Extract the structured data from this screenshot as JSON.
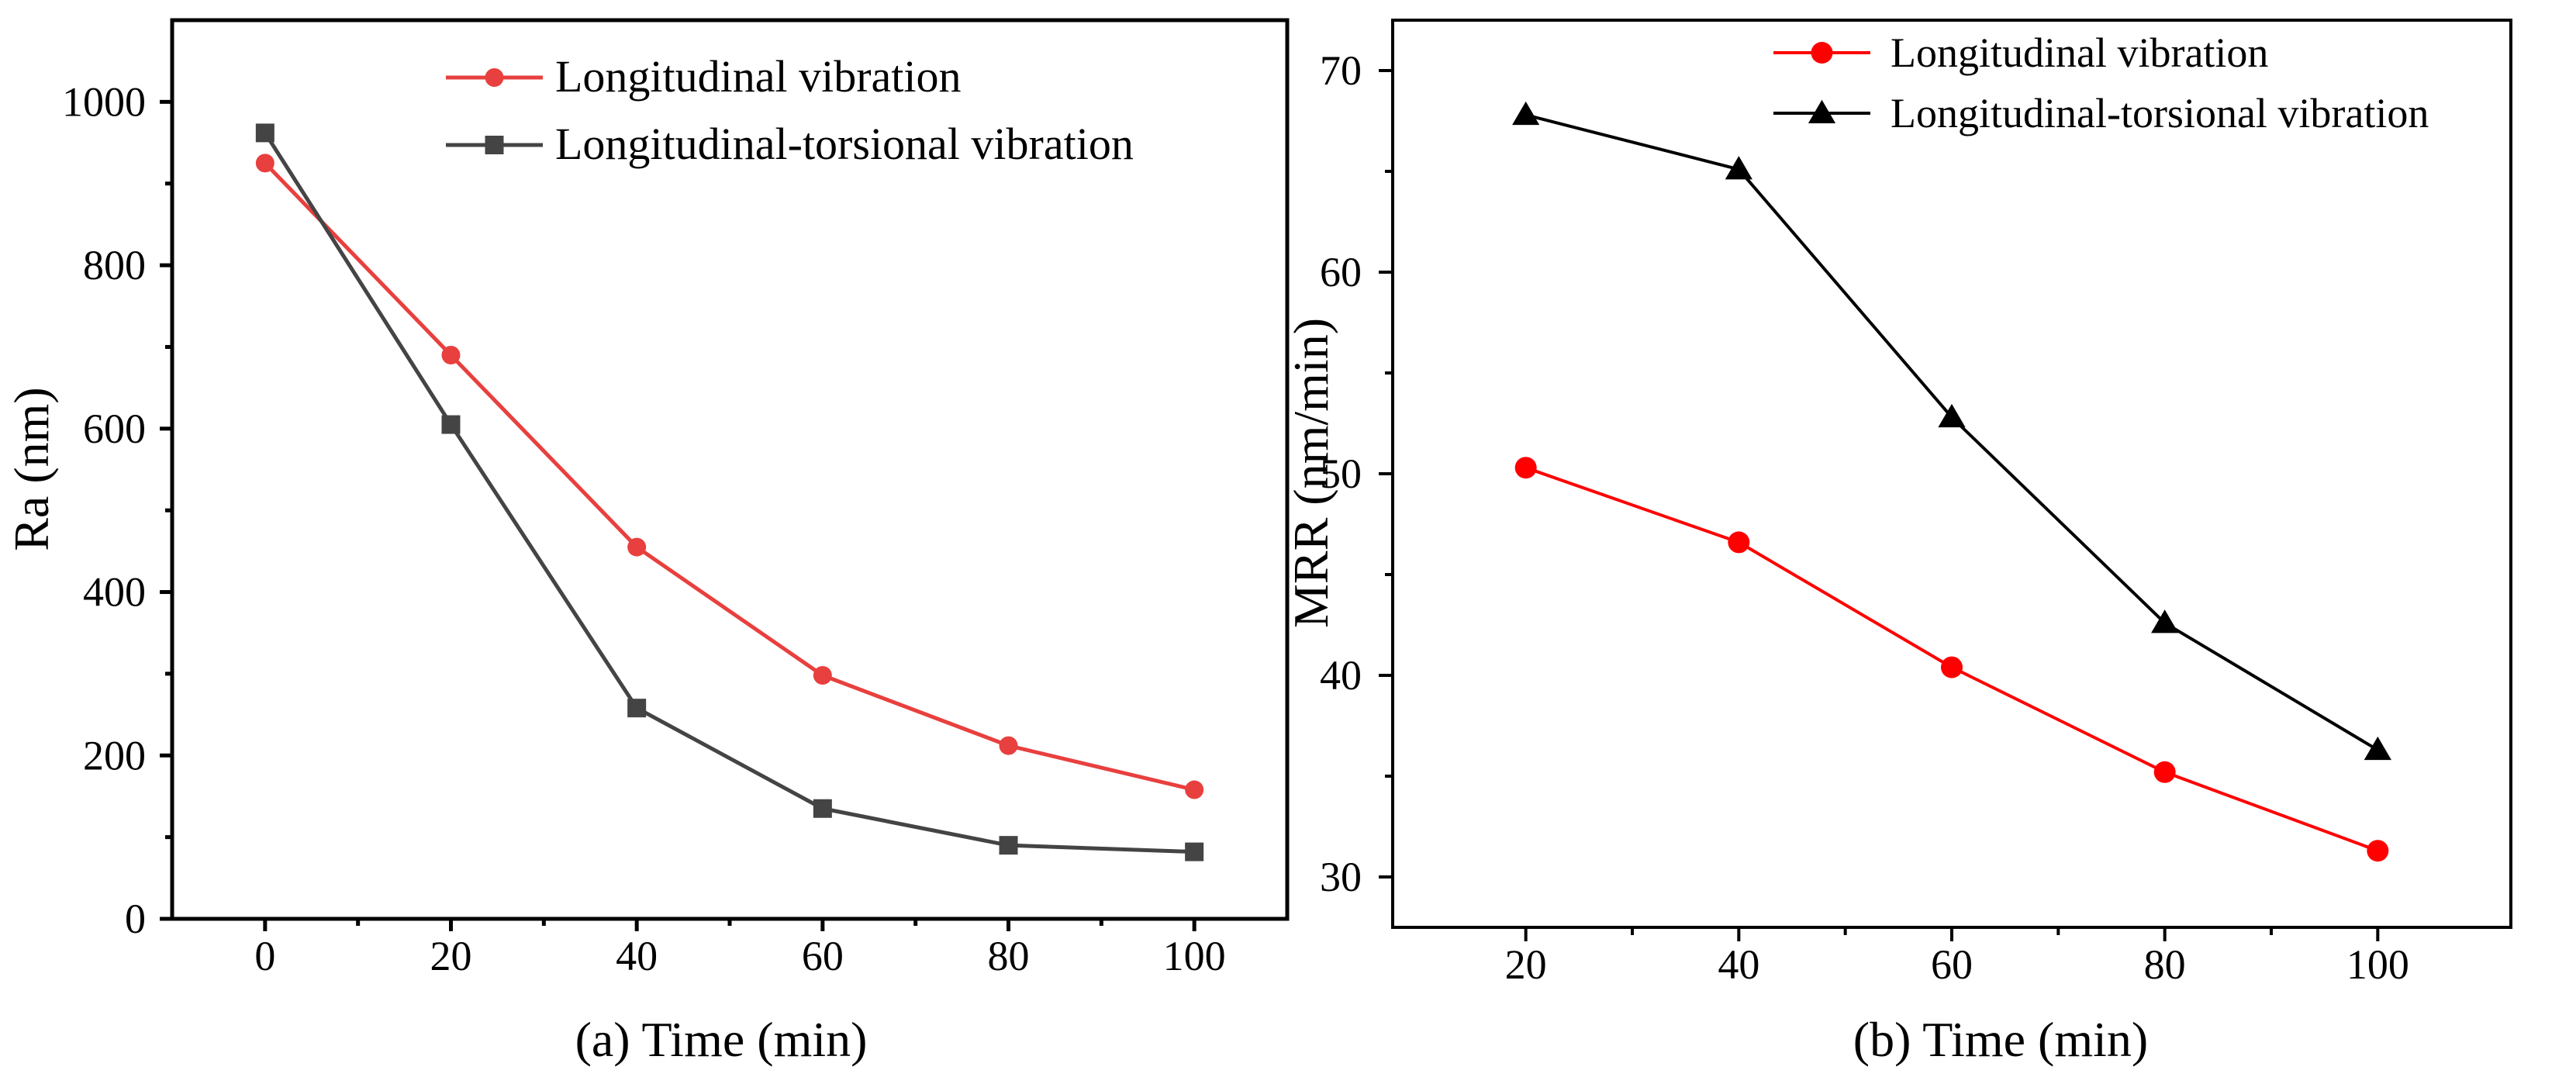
{
  "chart_data": [
    {
      "type": "line",
      "xlabel": "(a) Time (min)",
      "ylabel": "Ra (nm)",
      "xlim": [
        -10,
        110
      ],
      "ylim": [
        0,
        1100
      ],
      "xticks": [
        0,
        20,
        40,
        60,
        80,
        100
      ],
      "yticks": [
        0,
        200,
        400,
        600,
        800,
        1000
      ],
      "legend_position": "top-right",
      "x": [
        0,
        20,
        40,
        60,
        80,
        100
      ],
      "series": [
        {
          "name": "Longitudinal vibration",
          "marker": "circle",
          "color": "#e8403e",
          "values": [
            925,
            690,
            455,
            298,
            212,
            158
          ]
        },
        {
          "name": "Longitudinal-torsional vibration",
          "marker": "square",
          "color": "#444444",
          "values": [
            962,
            605,
            258,
            135,
            90,
            82
          ]
        }
      ]
    },
    {
      "type": "line",
      "xlabel": "(b) Time (min)",
      "ylabel": "MRR (nm/min)",
      "xlim": [
        7.5,
        112.5
      ],
      "ylim": [
        27.5,
        72.5
      ],
      "xticks": [
        20,
        40,
        60,
        80,
        100
      ],
      "yticks": [
        30,
        40,
        50,
        60,
        70
      ],
      "legend_position": "top-right",
      "x": [
        20,
        40,
        60,
        80,
        100
      ],
      "series": [
        {
          "name": "Longitudinal vibration",
          "marker": "circle",
          "color": "#ff0000",
          "values": [
            50.3,
            46.6,
            40.4,
            35.2,
            31.3
          ]
        },
        {
          "name": "Longitudinal-torsional vibration",
          "marker": "triangle",
          "color": "#000000",
          "values": [
            67.8,
            65.1,
            52.8,
            42.6,
            36.3
          ]
        }
      ]
    }
  ]
}
